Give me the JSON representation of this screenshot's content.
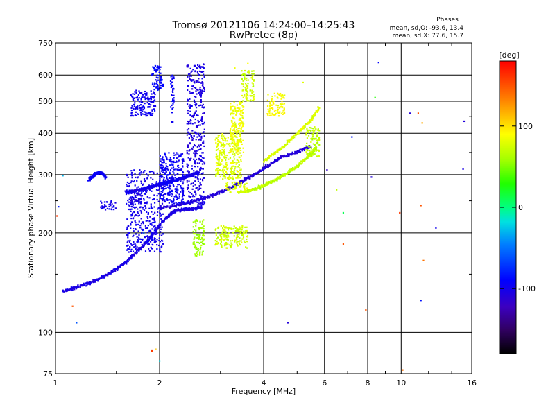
{
  "chart_data": {
    "type": "scatter",
    "title": "Tromsø 20121106 14:24:00–14:25:43",
    "subtitle": "RwPretec (8p)",
    "xlabel": "Frequency [MHz]",
    "ylabel": "Stationary phase Virtual Height [km]",
    "xscale": "log",
    "yscale": "log",
    "xlim": [
      1,
      16
    ],
    "ylim": [
      75,
      750
    ],
    "grid": true,
    "x_ticks": [
      1,
      2,
      4,
      6,
      8,
      10,
      16
    ],
    "y_ticks": [
      75,
      100,
      200,
      300,
      400,
      500,
      600,
      750
    ],
    "x_tick_labels": [
      "1",
      "2",
      "4",
      "6",
      "8",
      "10",
      "16"
    ],
    "y_tick_labels": [
      "75",
      "100",
      "200",
      "300",
      "400",
      "500",
      "600",
      "750"
    ],
    "stats": {
      "heading": "Phases",
      "line_o": "mean, sd,O: -93.6, 13.4",
      "line_x": "mean, sd,X: 77.6, 15.7"
    },
    "colorbar": {
      "label": "[deg]",
      "min": -180,
      "max": 180,
      "ticks": [
        100,
        0,
        -100
      ],
      "tick_labels": [
        "100",
        "0",
        "-100"
      ]
    },
    "series": [
      {
        "mode": "O",
        "mean_phase_deg": -93.6,
        "sd_phase_deg": 13.4,
        "traces": [
          {
            "x": [
              1.05,
              1.15,
              1.3,
              1.45,
              1.6,
              1.75,
              1.9,
              2.05,
              2.2,
              2.35,
              2.5,
              2.65
            ],
            "y": [
              133,
              137,
              143,
              152,
              163,
              178,
              196,
              218,
              232,
              236,
              237,
              238
            ],
            "phase": -105
          },
          {
            "x": [
              2.0,
              2.3,
              2.6,
              2.9,
              3.2,
              3.5,
              3.8,
              4.1,
              4.5,
              5.0,
              5.5
            ],
            "y": [
              237,
              244,
              252,
              262,
              274,
              288,
              302,
              318,
              338,
              352,
              365
            ],
            "phase": -110
          },
          {
            "x": [
              1.6,
              1.7,
              1.8,
              1.9,
              2.0,
              2.1,
              2.2,
              2.3,
              2.4,
              2.5,
              2.6
            ],
            "y": [
              265,
              268,
              272,
              276,
              280,
              284,
              288,
              292,
              296,
              300,
              305
            ],
            "phase": -100
          },
          {
            "x": [
              1.25,
              1.3,
              1.35,
              1.4
            ],
            "y": [
              290,
              300,
              305,
              295
            ],
            "phase": -95
          }
        ],
        "clusters": [
          {
            "x": [
              1.6,
              2.05
            ],
            "y": [
              175,
              310
            ],
            "phase": -100
          },
          {
            "x": [
              1.65,
              1.95
            ],
            "y": [
              450,
              540
            ],
            "phase": -98
          },
          {
            "x": [
              1.9,
              2.05
            ],
            "y": [
              540,
              640
            ],
            "phase": -90
          },
          {
            "x": [
              2.15,
              2.2
            ],
            "y": [
              430,
              600
            ],
            "phase": -95
          },
          {
            "x": [
              2.4,
              2.7
            ],
            "y": [
              240,
              650
            ],
            "phase": -105
          },
          {
            "x": [
              2.0,
              2.35
            ],
            "y": [
              245,
              350
            ],
            "phase": -95
          },
          {
            "x": [
              1.65,
              1.8
            ],
            "y": [
              245,
              270
            ],
            "phase": -108
          },
          {
            "x": [
              1.35,
              1.5
            ],
            "y": [
              235,
              250
            ],
            "phase": -100
          }
        ]
      },
      {
        "mode": "X",
        "mean_phase_deg": 77.6,
        "sd_phase_deg": 15.7,
        "traces": [
          {
            "x": [
              3.4,
              3.7,
              4.0,
              4.3,
              4.6,
              5.0,
              5.4,
              5.7
            ],
            "y": [
              265,
              270,
              278,
              288,
              300,
              318,
              340,
              365
            ],
            "phase": 70
          },
          {
            "x": [
              4.0,
              4.5,
              5.0,
              5.5,
              5.8
            ],
            "y": [
              330,
              360,
              400,
              440,
              480
            ],
            "phase": 80
          }
        ],
        "clusters": [
          {
            "x": [
              2.9,
              3.45
            ],
            "y": [
              290,
              400
            ],
            "phase": 80
          },
          {
            "x": [
              3.2,
              3.5
            ],
            "y": [
              350,
              500
            ],
            "phase": 85
          },
          {
            "x": [
              3.45,
              3.75
            ],
            "y": [
              500,
              620
            ],
            "phase": 75
          },
          {
            "x": [
              4.1,
              4.6
            ],
            "y": [
              450,
              530
            ],
            "phase": 90
          },
          {
            "x": [
              5.3,
              5.8
            ],
            "y": [
              340,
              420
            ],
            "phase": 70
          },
          {
            "x": [
              2.5,
              2.7
            ],
            "y": [
              170,
              220
            ],
            "phase": 60
          },
          {
            "x": [
              2.9,
              3.6
            ],
            "y": [
              180,
              210
            ],
            "phase": 75
          },
          {
            "x": [
              3.1,
              3.6
            ],
            "y": [
              265,
              285
            ],
            "phase": 80
          }
        ]
      }
    ],
    "sparse_points": [
      {
        "x": 1.02,
        "y": 240,
        "phase": -80
      },
      {
        "x": 1.08,
        "y": 135,
        "phase": -100
      },
      {
        "x": 1.12,
        "y": 120,
        "phase": 150
      },
      {
        "x": 1.15,
        "y": 107,
        "phase": -60
      },
      {
        "x": 1.01,
        "y": 225,
        "phase": 160
      },
      {
        "x": 1.9,
        "y": 88,
        "phase": 160
      },
      {
        "x": 1.95,
        "y": 89,
        "phase": 110
      },
      {
        "x": 2.0,
        "y": 82,
        "phase": -20
      },
      {
        "x": 4.7,
        "y": 107,
        "phase": -110
      },
      {
        "x": 3.3,
        "y": 630,
        "phase": 85
      },
      {
        "x": 3.6,
        "y": 650,
        "phase": 90
      },
      {
        "x": 5.2,
        "y": 570,
        "phase": 80
      },
      {
        "x": 6.1,
        "y": 310,
        "phase": -120
      },
      {
        "x": 6.5,
        "y": 270,
        "phase": 70
      },
      {
        "x": 6.8,
        "y": 230,
        "phase": 10
      },
      {
        "x": 6.8,
        "y": 185,
        "phase": 150
      },
      {
        "x": 7.2,
        "y": 390,
        "phase": -80
      },
      {
        "x": 7.9,
        "y": 117,
        "phase": 150
      },
      {
        "x": 8.4,
        "y": 513,
        "phase": 30
      },
      {
        "x": 8.6,
        "y": 655,
        "phase": -90
      },
      {
        "x": 8.2,
        "y": 295,
        "phase": -110
      },
      {
        "x": 9.9,
        "y": 230,
        "phase": 160
      },
      {
        "x": 10.1,
        "y": 77,
        "phase": 140
      },
      {
        "x": 10.6,
        "y": 460,
        "phase": -110
      },
      {
        "x": 11.2,
        "y": 460,
        "phase": 150
      },
      {
        "x": 11.5,
        "y": 430,
        "phase": 120
      },
      {
        "x": 11.4,
        "y": 242,
        "phase": 150
      },
      {
        "x": 11.4,
        "y": 125,
        "phase": -85
      },
      {
        "x": 11.6,
        "y": 165,
        "phase": 140
      },
      {
        "x": 12.6,
        "y": 207,
        "phase": -100
      },
      {
        "x": 15.2,
        "y": 435,
        "phase": -110
      },
      {
        "x": 15.1,
        "y": 312,
        "phase": -105
      },
      {
        "x": 1.8,
        "y": 200,
        "phase": -60
      },
      {
        "x": 1.05,
        "y": 298,
        "phase": -30
      }
    ]
  }
}
